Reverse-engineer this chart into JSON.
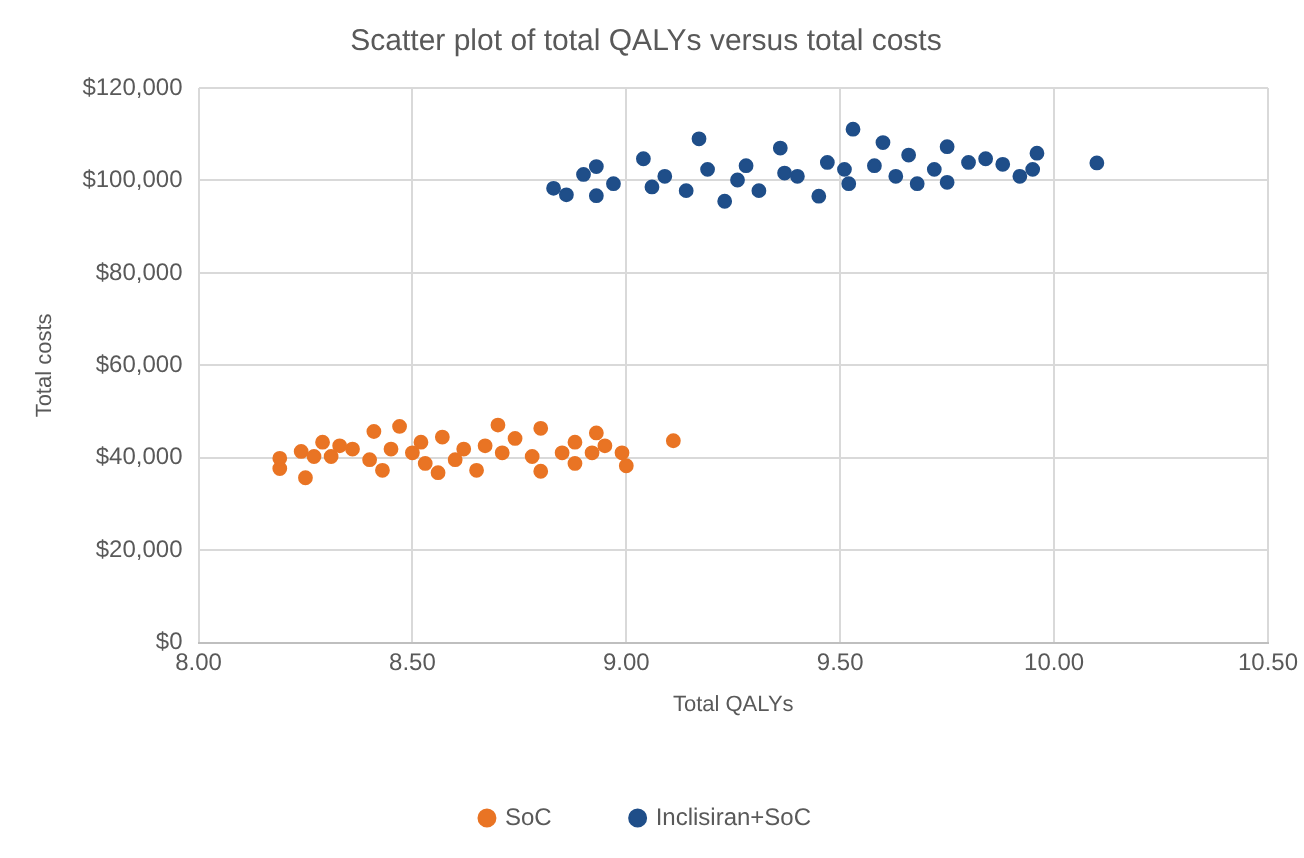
{
  "chart_data": {
    "type": "scatter",
    "title": "Scatter plot of total QALYs versus total costs",
    "xlabel": "Total QALYs",
    "ylabel": "Total costs",
    "xlim": [
      8,
      10.5
    ],
    "xticks": [
      {
        "value": 8,
        "label": "8.00"
      },
      {
        "value": 8.5,
        "label": "8.50"
      },
      {
        "value": 9,
        "label": "9.00"
      },
      {
        "value": 9.5,
        "label": "9.50"
      },
      {
        "value": 10,
        "label": "10.00"
      },
      {
        "value": 10.5,
        "label": "10.50"
      }
    ],
    "ylim": [
      0,
      120000
    ],
    "yticks": [
      {
        "value": 0,
        "label": "$0"
      },
      {
        "value": 20000,
        "label": "$20,000"
      },
      {
        "value": 40000,
        "label": "$40,000"
      },
      {
        "value": 60000,
        "label": "$60,000"
      },
      {
        "value": 80000,
        "label": "$80,000"
      },
      {
        "value": 100000,
        "label": "$100,000"
      },
      {
        "value": 120000,
        "label": "$120,000"
      }
    ],
    "grid": true,
    "legend": "bottom",
    "marker": "circle",
    "series": [
      {
        "name": "SoC",
        "color": "#e97424",
        "x": [
          8.19,
          8.19,
          8.25,
          8.24,
          8.29,
          8.31,
          8.36,
          8.41,
          8.47,
          8.43,
          8.5,
          8.56,
          8.57,
          8.62,
          8.65,
          8.7,
          8.71,
          8.74,
          8.8,
          8.8,
          8.85,
          8.88,
          8.93,
          8.95,
          8.99,
          9.0,
          9.11,
          8.27,
          8.33,
          8.4,
          8.45,
          8.52,
          8.53,
          8.6,
          8.67,
          8.78,
          8.88,
          8.92
        ],
        "values": [
          37700,
          39900,
          35700,
          41400,
          43400,
          40300,
          41900,
          45700,
          46800,
          37300,
          41100,
          36800,
          44500,
          41900,
          37300,
          47100,
          41100,
          44200,
          37100,
          46400,
          41100,
          38800,
          45400,
          42600,
          41100,
          38300,
          43700,
          40300,
          42600,
          39600,
          41900,
          43400,
          38800,
          39600,
          42600,
          40300,
          43400,
          41100
        ]
      },
      {
        "name": "Inclisiran+SoC",
        "color": "#1f4e89",
        "x": [
          8.83,
          8.86,
          8.9,
          8.93,
          8.93,
          8.97,
          9.04,
          9.06,
          9.17,
          9.14,
          9.19,
          9.23,
          9.28,
          9.31,
          9.36,
          9.4,
          9.45,
          9.47,
          9.53,
          9.52,
          9.58,
          9.6,
          9.63,
          9.66,
          9.68,
          9.75,
          9.75,
          9.8,
          9.84,
          9.88,
          9.92,
          9.95,
          9.96,
          10.1,
          9.09,
          9.26,
          9.37,
          9.51,
          9.72
        ],
        "values": [
          98300,
          96900,
          101300,
          103000,
          96700,
          99300,
          104700,
          98600,
          109000,
          97800,
          102400,
          95500,
          103200,
          97800,
          107000,
          100900,
          96600,
          103900,
          111100,
          99300,
          103200,
          108200,
          100900,
          105500,
          99300,
          107300,
          99600,
          103900,
          104700,
          103500,
          100900,
          102400,
          105900,
          103800,
          100900,
          100100,
          101600,
          102400,
          102400
        ]
      }
    ]
  }
}
